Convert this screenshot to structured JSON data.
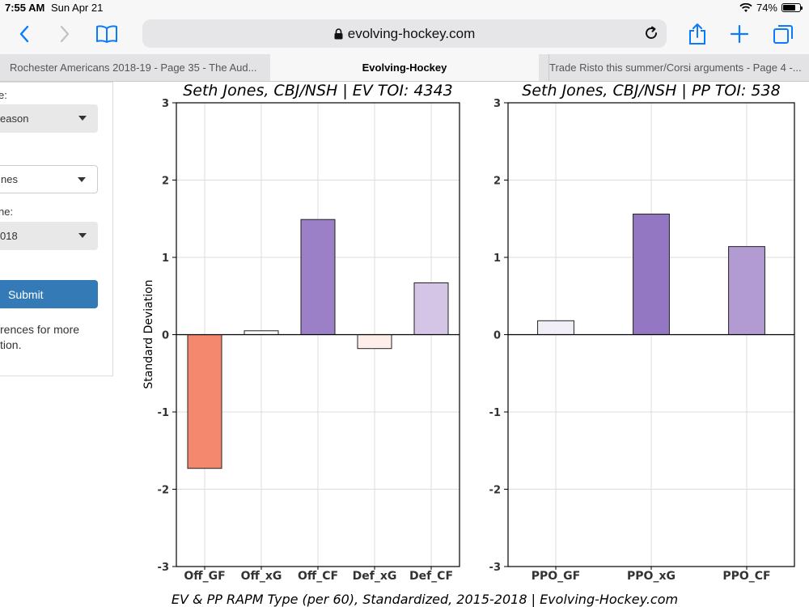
{
  "status": {
    "time": "7:55 AM",
    "date": "Sun Apr 21",
    "battery": "74%",
    "battery_level": 0.74
  },
  "browser": {
    "url": "evolving-hockey.com",
    "tabs": [
      {
        "label": "Rochester Americans 2018-19 - Page 35 - The Aud..."
      },
      {
        "label": "Evolving-Hockey"
      },
      {
        "label": "Trade Risto this summer/Corsi arguments - Page 4 -..."
      }
    ]
  },
  "sidebar": {
    "label1": "e:",
    "select1": "eason",
    "select2": "nes",
    "label3": "ne:",
    "select3": "018",
    "submit": "Submit",
    "note_line1": "rences for more",
    "note_line2": "tion."
  },
  "chart_data": [
    {
      "type": "bar",
      "title": "Seth Jones, CBJ/NSH  |  EV TOI: 4343",
      "ylabel": "Standard Deviation",
      "xlabel": "",
      "ylim": [
        -3,
        3
      ],
      "yticks": [
        "3",
        "2",
        "1",
        "0",
        "-1",
        "-2",
        "-3"
      ],
      "categories": [
        "Off_GF",
        "Off_xG",
        "Off_CF",
        "Def_xG",
        "Def_CF"
      ],
      "values": [
        -1.73,
        0.05,
        1.49,
        -0.18,
        0.67
      ],
      "colors": [
        "#f4886e",
        "#fbfafd",
        "#9b7fc7",
        "#fdeeea",
        "#d4c5e6"
      ],
      "grid": true
    },
    {
      "type": "bar",
      "title": "Seth Jones, CBJ/NSH  |  PP TOI: 538",
      "ylabel": "",
      "xlabel": "",
      "ylim": [
        -3,
        3
      ],
      "yticks": [
        "3",
        "2",
        "1",
        "0",
        "-1",
        "-2",
        "-3"
      ],
      "categories": [
        "PPO_GF",
        "PPO_xG",
        "PPO_CF"
      ],
      "values": [
        0.18,
        1.56,
        1.14
      ],
      "colors": [
        "#f1eef8",
        "#9477c2",
        "#b29bd3"
      ],
      "grid": true
    }
  ],
  "footer": "EV & PP RAPM Type (per 60), Standardized, 2015-2018    |    Evolving-Hockey.com"
}
